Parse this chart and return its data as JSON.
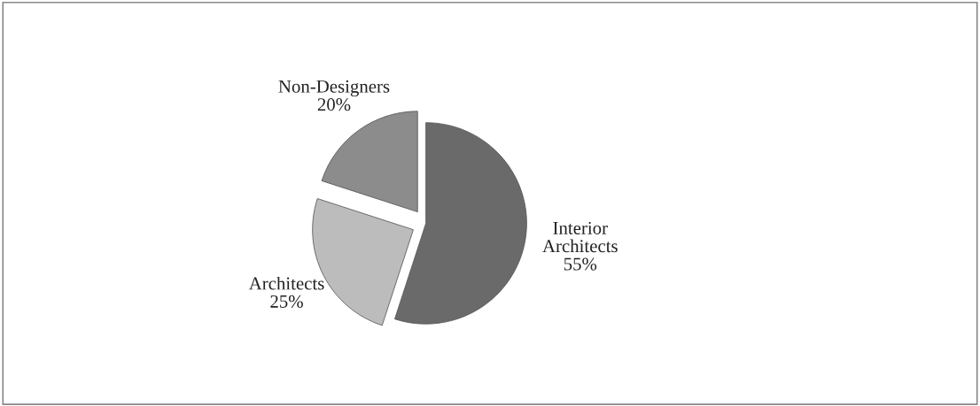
{
  "chart_data": {
    "type": "pie",
    "categories": [
      "Interior Architects",
      "Architects",
      "Non-Designers"
    ],
    "values": [
      55,
      25,
      20
    ],
    "colors": [
      "#6a6a6a",
      "#bcbcbc",
      "#8c8c8c"
    ],
    "value_labels": [
      "55%",
      "25%",
      "20%"
    ]
  }
}
